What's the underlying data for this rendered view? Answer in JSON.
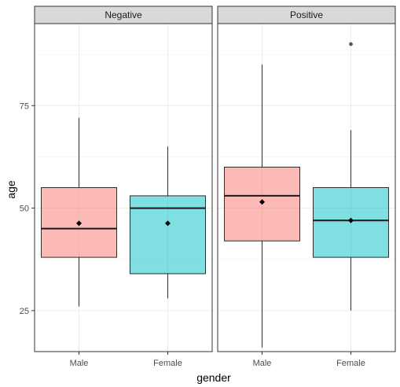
{
  "chart_data": {
    "type": "boxplot",
    "xlabel": "gender",
    "ylabel": "age",
    "ylim": [
      15,
      95
    ],
    "yticks": [
      25,
      50,
      75
    ],
    "categories": [
      "Male",
      "Female"
    ],
    "colors": {
      "Male": "#F8766D",
      "Female": "#00BFC4"
    },
    "grid": true,
    "facets": [
      {
        "label": "Negative",
        "boxes": [
          {
            "category": "Male",
            "min": 26,
            "q1": 38,
            "median": 45,
            "q3": 55,
            "max": 72,
            "mean": 46.3,
            "outliers": []
          },
          {
            "category": "Female",
            "min": 28,
            "q1": 34,
            "median": 50,
            "q3": 53,
            "max": 65,
            "mean": 46.3,
            "outliers": []
          }
        ]
      },
      {
        "label": "Positive",
        "boxes": [
          {
            "category": "Male",
            "min": 16,
            "q1": 42,
            "median": 53,
            "q3": 60,
            "max": 85,
            "mean": 51.5,
            "outliers": []
          },
          {
            "category": "Female",
            "min": 25,
            "q1": 38,
            "median": 47,
            "q3": 55,
            "max": 69,
            "mean": 47,
            "outliers": [
              90
            ]
          }
        ]
      }
    ]
  }
}
